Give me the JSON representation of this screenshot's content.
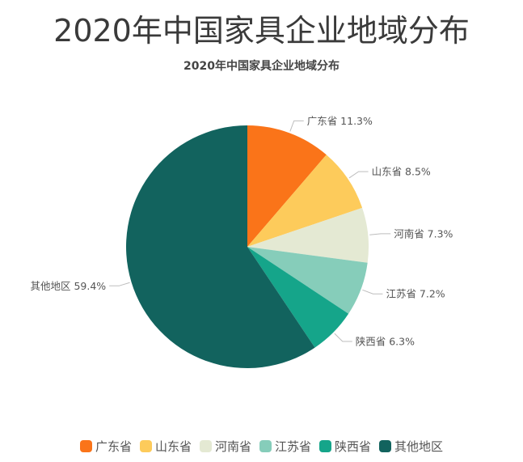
{
  "header": {
    "page_title": "2020年中国家具企业地域分布"
  },
  "chart_data": {
    "type": "pie",
    "title": "2020年中国家具企业地域分布",
    "unit": "%",
    "start_angle": "top (12 o'clock), clockwise",
    "categories": [
      "广东省",
      "山东省",
      "河南省",
      "江苏省",
      "陕西省",
      "其他地区"
    ],
    "values": [
      11.3,
      8.5,
      7.3,
      7.2,
      6.3,
      59.4
    ],
    "colors": [
      "#FA7419",
      "#FDCB5B",
      "#E4E9D3",
      "#86CDBA",
      "#15A58A",
      "#12635E"
    ],
    "labels": [
      "广东省 11.3%",
      "山东省 8.5%",
      "河南省 7.3%",
      "江苏省 7.2%",
      "陕西省 6.3%",
      "其他地区 59.4%"
    ],
    "legend_position": "bottom"
  },
  "legend": {
    "items": [
      {
        "label": "广东省",
        "color": "#FA7419"
      },
      {
        "label": "山东省",
        "color": "#FDCB5B"
      },
      {
        "label": "河南省",
        "color": "#E4E9D3"
      },
      {
        "label": "江苏省",
        "color": "#86CDBA"
      },
      {
        "label": "陕西省",
        "color": "#15A58A"
      },
      {
        "label": "其他地区",
        "color": "#12635E"
      }
    ]
  }
}
